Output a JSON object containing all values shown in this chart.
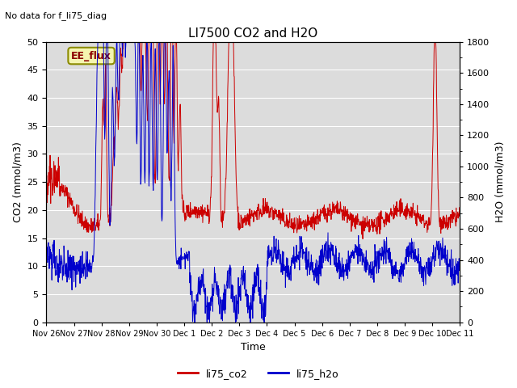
{
  "title": "LI7500 CO2 and H2O",
  "top_left_text": "No data for f_li75_diag",
  "box_label": "EE_flux",
  "xlabel": "Time",
  "ylabel_left": "CO2 (mmol/m3)",
  "ylabel_right": "H2O (mmol/m3)",
  "ylim_left": [
    0,
    50
  ],
  "ylim_right": [
    0,
    1800
  ],
  "yticks_left": [
    0,
    5,
    10,
    15,
    20,
    25,
    30,
    35,
    40,
    45,
    50
  ],
  "yticks_right": [
    0,
    200,
    400,
    600,
    800,
    1000,
    1200,
    1400,
    1600,
    1800
  ],
  "x_tick_labels": [
    "Nov 26",
    "Nov 27",
    "Nov 28",
    "Nov 29",
    "Nov 30",
    "Dec 1",
    "Dec 2",
    "Dec 3",
    "Dec 4",
    "Dec 5",
    "Dec 6",
    "Dec 7",
    "Dec 8",
    "Dec 9",
    "Dec 10",
    "Dec 11"
  ],
  "co2_color": "#cc0000",
  "h2o_color": "#0000cc",
  "plot_bg_color": "#dcdcdc",
  "legend_co2": "li75_co2",
  "legend_h2o": "li75_h2o",
  "h2o_scale": 36.0,
  "figsize": [
    6.4,
    4.8
  ],
  "dpi": 100
}
